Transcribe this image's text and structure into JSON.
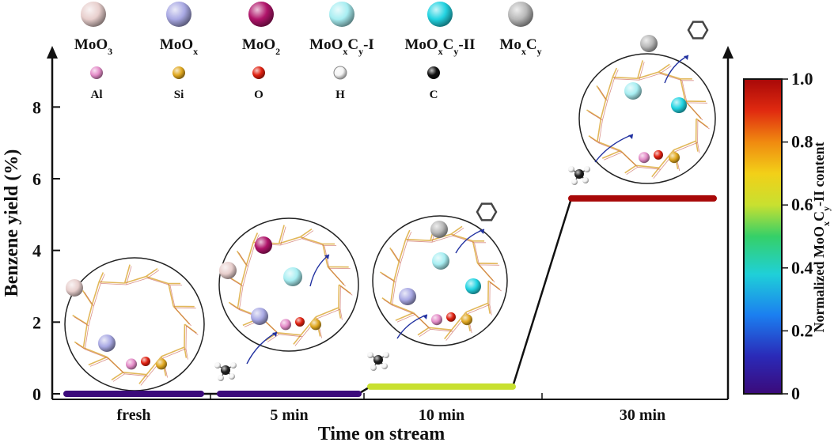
{
  "legend": {
    "species": [
      {
        "label": "MoO",
        "sub": "3",
        "rest": "",
        "color": "#e8cfcd"
      },
      {
        "label": "MoO",
        "sub": "x",
        "rest": "",
        "color": "#a9a9e4"
      },
      {
        "label": "MoO",
        "sub": "2",
        "rest": "",
        "color": "#b0146a"
      },
      {
        "label": "MoO",
        "sub": "x",
        "mid": "C",
        "sub2": "y",
        "rest": "-I",
        "color": "#a8eef2"
      },
      {
        "label": "MoO",
        "sub": "x",
        "mid": "C",
        "sub2": "y",
        "rest": "-II",
        "color": "#23d4e2"
      },
      {
        "label": "Mo",
        "sub": "x",
        "mid": "C",
        "sub2": "y",
        "rest": "",
        "color": "#b8b8b8"
      }
    ],
    "atoms": [
      {
        "label": "Al",
        "color": "#e48cc8"
      },
      {
        "label": "Si",
        "color": "#e0a820"
      },
      {
        "label": "O",
        "color": "#e02010"
      },
      {
        "label": "H",
        "color": "#f4f4f4"
      },
      {
        "label": "C",
        "color": "#111111"
      }
    ]
  },
  "chart_data": {
    "type": "line",
    "ylabel": "Benzene yield (%)",
    "xlabel": "Time on stream",
    "ylim": [
      0,
      9
    ],
    "yticks": [
      0,
      2,
      4,
      6,
      8
    ],
    "categories": [
      "fresh",
      "5 min",
      "10 min",
      "30 min"
    ],
    "series": [
      {
        "values": [
          0,
          0,
          0.2,
          5.45
        ],
        "normalized_content": [
          0,
          0,
          0.6,
          1.0
        ]
      }
    ],
    "colorbar": {
      "title_prefix": "Normalized MoO",
      "title_sub1": "x",
      "title_mid": "C",
      "title_sub2": "y",
      "title_suffix": "-II  content",
      "ticks": [
        "0",
        "0.2",
        "0.4",
        "0.6",
        "0.8",
        "1.0"
      ],
      "range": [
        0,
        1
      ]
    }
  }
}
